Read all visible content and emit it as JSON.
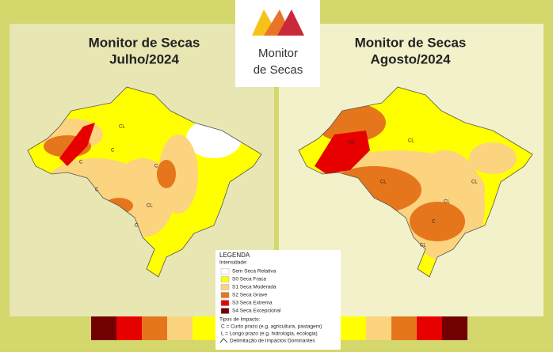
{
  "logo": {
    "line1": "Monitor",
    "line2": "de Secas"
  },
  "maps": [
    {
      "title_line1": "Monitor de Secas",
      "title_line2": "Julho/2024",
      "impact_labels": [
        "CL",
        "C",
        "C",
        "C",
        "CL",
        "C",
        "C"
      ]
    },
    {
      "title_line1": "Monitor de Secas",
      "title_line2": "Agosto/2024",
      "impact_labels": [
        "CL",
        "CL",
        "CL",
        "CL",
        "CL",
        "C",
        "CL"
      ]
    }
  ],
  "legend": {
    "title": "LEGENDA",
    "intensity_title": "Intensidade:",
    "items": [
      {
        "label": "Sem Seca Relativa",
        "color": "#ffffff"
      },
      {
        "label": "S0 Seca Fraca",
        "color": "#ffff00"
      },
      {
        "label": "S1 Seca Moderada",
        "color": "#fcd37f"
      },
      {
        "label": "S2 Seca Grave",
        "color": "#e6761b"
      },
      {
        "label": "S3 Seca Extrema",
        "color": "#e60000"
      },
      {
        "label": "S4 Seca Excepcional",
        "color": "#730000"
      }
    ],
    "impact_title": "Tipos de Impacto:",
    "impacts": [
      "C = Curto prazo (e.g. agricultura, pastagem)",
      "L = Longo prazo (e.g. hidrologia, ecologia)",
      "Delimitação de Impactos Dominantes"
    ]
  }
}
